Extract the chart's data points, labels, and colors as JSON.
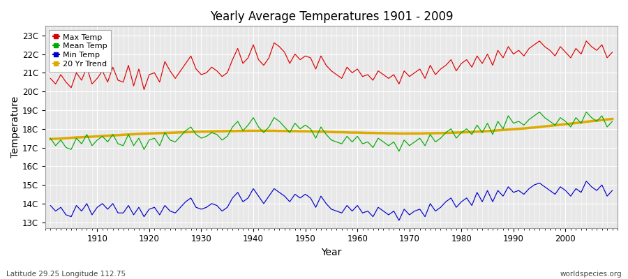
{
  "title": "Yearly Average Temperatures 1901 - 2009",
  "xlabel": "Year",
  "ylabel": "Temperature",
  "footer_left": "Latitude 29.25 Longitude 112.75",
  "footer_right": "worldspecies.org",
  "start_year": 1901,
  "end_year": 2009,
  "yticks": [
    "13C",
    "14C",
    "15C",
    "16C",
    "17C",
    "18C",
    "19C",
    "20C",
    "21C",
    "22C",
    "23C"
  ],
  "ytick_vals": [
    13,
    14,
    15,
    16,
    17,
    18,
    19,
    20,
    21,
    22,
    23
  ],
  "ylim": [
    12.7,
    23.5
  ],
  "xlim": [
    1900,
    2010
  ],
  "colors": {
    "max": "#dd0000",
    "mean": "#00aa00",
    "min": "#0000cc",
    "trend": "#ddaa00",
    "background": "#e8e8e8",
    "grid": "#ffffff"
  },
  "legend_labels": [
    "Max Temp",
    "Mean Temp",
    "Min Temp",
    "20 Yr Trend"
  ],
  "max_temps": [
    20.7,
    20.4,
    20.9,
    20.5,
    20.2,
    21.0,
    20.6,
    21.3,
    20.4,
    20.7,
    21.1,
    20.5,
    21.3,
    20.6,
    20.5,
    21.4,
    20.3,
    21.2,
    20.1,
    20.9,
    21.0,
    20.5,
    21.6,
    21.1,
    20.7,
    21.1,
    21.5,
    21.9,
    21.2,
    20.9,
    21.0,
    21.3,
    21.1,
    20.8,
    21.0,
    21.7,
    22.3,
    21.5,
    21.8,
    22.5,
    21.7,
    21.4,
    21.8,
    22.6,
    22.4,
    22.1,
    21.5,
    22.0,
    21.7,
    21.9,
    21.8,
    21.2,
    21.9,
    21.4,
    21.1,
    20.9,
    20.7,
    21.3,
    21.0,
    21.2,
    20.8,
    20.9,
    20.6,
    21.1,
    20.9,
    20.7,
    20.9,
    20.4,
    21.1,
    20.8,
    21.0,
    21.2,
    20.7,
    21.4,
    20.9,
    21.2,
    21.4,
    21.7,
    21.1,
    21.5,
    21.7,
    21.3,
    21.9,
    21.5,
    22.0,
    21.4,
    22.2,
    21.8,
    22.4,
    22.0,
    22.2,
    21.9,
    22.3,
    22.5,
    22.7,
    22.4,
    22.2,
    21.9,
    22.4,
    22.1,
    21.8,
    22.3,
    22.0,
    22.7,
    22.4,
    22.2,
    22.5,
    21.8,
    22.1
  ],
  "mean_temps": [
    17.5,
    17.1,
    17.4,
    17.0,
    16.9,
    17.5,
    17.2,
    17.7,
    17.1,
    17.4,
    17.6,
    17.3,
    17.7,
    17.2,
    17.1,
    17.7,
    17.1,
    17.5,
    16.9,
    17.4,
    17.5,
    17.1,
    17.8,
    17.4,
    17.3,
    17.6,
    17.9,
    18.1,
    17.7,
    17.5,
    17.6,
    17.8,
    17.7,
    17.4,
    17.6,
    18.1,
    18.4,
    17.9,
    18.2,
    18.6,
    18.1,
    17.8,
    18.1,
    18.6,
    18.4,
    18.1,
    17.8,
    18.3,
    18.0,
    18.2,
    18.0,
    17.5,
    18.1,
    17.7,
    17.4,
    17.3,
    17.2,
    17.6,
    17.3,
    17.6,
    17.2,
    17.3,
    17.0,
    17.5,
    17.3,
    17.1,
    17.3,
    16.8,
    17.4,
    17.1,
    17.3,
    17.5,
    17.1,
    17.7,
    17.3,
    17.5,
    17.8,
    18.0,
    17.5,
    17.8,
    18.0,
    17.7,
    18.2,
    17.8,
    18.3,
    17.7,
    18.4,
    18.0,
    18.7,
    18.3,
    18.4,
    18.2,
    18.5,
    18.7,
    18.9,
    18.6,
    18.4,
    18.2,
    18.6,
    18.4,
    18.1,
    18.6,
    18.3,
    18.9,
    18.6,
    18.4,
    18.7,
    18.1,
    18.4
  ],
  "min_temps": [
    13.9,
    13.6,
    13.8,
    13.4,
    13.3,
    13.9,
    13.6,
    14.0,
    13.4,
    13.8,
    14.0,
    13.7,
    14.0,
    13.5,
    13.5,
    13.9,
    13.4,
    13.8,
    13.3,
    13.7,
    13.8,
    13.4,
    13.9,
    13.6,
    13.5,
    13.8,
    14.1,
    14.3,
    13.8,
    13.7,
    13.8,
    14.0,
    13.9,
    13.6,
    13.8,
    14.3,
    14.6,
    14.1,
    14.3,
    14.8,
    14.4,
    14.0,
    14.4,
    14.8,
    14.6,
    14.4,
    14.1,
    14.5,
    14.3,
    14.5,
    14.3,
    13.8,
    14.4,
    14.0,
    13.7,
    13.6,
    13.5,
    13.9,
    13.6,
    13.9,
    13.5,
    13.6,
    13.3,
    13.8,
    13.6,
    13.4,
    13.6,
    13.1,
    13.7,
    13.4,
    13.6,
    13.7,
    13.3,
    14.0,
    13.6,
    13.8,
    14.1,
    14.3,
    13.8,
    14.1,
    14.3,
    13.9,
    14.6,
    14.1,
    14.7,
    14.1,
    14.7,
    14.4,
    14.9,
    14.6,
    14.7,
    14.5,
    14.8,
    15.0,
    15.1,
    14.9,
    14.7,
    14.5,
    14.9,
    14.7,
    14.4,
    14.8,
    14.6,
    15.2,
    14.9,
    14.7,
    15.0,
    14.4,
    14.7
  ],
  "trend_temps": [
    17.45,
    17.47,
    17.48,
    17.5,
    17.52,
    17.54,
    17.55,
    17.57,
    17.58,
    17.6,
    17.62,
    17.63,
    17.65,
    17.66,
    17.68,
    17.7,
    17.71,
    17.73,
    17.74,
    17.75,
    17.76,
    17.77,
    17.78,
    17.79,
    17.8,
    17.81,
    17.82,
    17.83,
    17.84,
    17.85,
    17.85,
    17.86,
    17.87,
    17.87,
    17.88,
    17.88,
    17.89,
    17.89,
    17.9,
    17.9,
    17.9,
    17.9,
    17.9,
    17.9,
    17.89,
    17.89,
    17.88,
    17.88,
    17.87,
    17.87,
    17.86,
    17.85,
    17.85,
    17.84,
    17.83,
    17.82,
    17.82,
    17.81,
    17.8,
    17.8,
    17.79,
    17.78,
    17.78,
    17.77,
    17.77,
    17.76,
    17.76,
    17.75,
    17.75,
    17.75,
    17.75,
    17.75,
    17.76,
    17.76,
    17.77,
    17.77,
    17.78,
    17.79,
    17.8,
    17.81,
    17.82,
    17.83,
    17.85,
    17.86,
    17.88,
    17.9,
    17.92,
    17.94,
    17.96,
    17.98,
    18.0,
    18.02,
    18.05,
    18.07,
    18.1,
    18.13,
    18.16,
    18.19,
    18.22,
    18.25,
    18.28,
    18.31,
    18.34,
    18.38,
    18.41,
    18.44,
    18.47,
    18.5,
    18.53
  ]
}
